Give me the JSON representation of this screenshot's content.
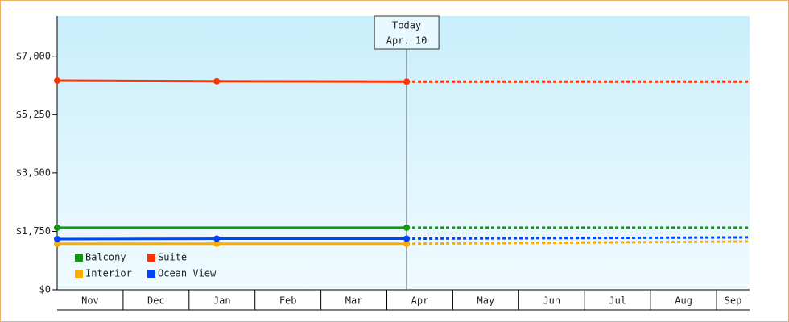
{
  "chart_data": {
    "type": "line",
    "categories": [
      "Nov",
      "Dec",
      "Jan",
      "Feb",
      "Mar",
      "Apr",
      "May",
      "Jun",
      "Jul",
      "Aug",
      "Sep"
    ],
    "xlim": [
      0,
      10.5
    ],
    "ylim": [
      0,
      8200
    ],
    "yticks": [
      {
        "value": 0,
        "label": "$0"
      },
      {
        "value": 1750,
        "label": "$1,750"
      },
      {
        "value": 3500,
        "label": "$3,500"
      },
      {
        "value": 5250,
        "label": "$5,250"
      },
      {
        "value": 7000,
        "label": "$7,000"
      }
    ],
    "annotation": {
      "x": 5.3,
      "lines": [
        "Today",
        "Apr. 10"
      ]
    },
    "legend": "bottom-left",
    "series": [
      {
        "name": "Balcony",
        "color": "#119911",
        "x": [
          0,
          5.3,
          10.5
        ],
        "values": [
          1860,
          1860,
          1860
        ]
      },
      {
        "name": "Suite",
        "color": "#ff3300",
        "x": [
          0,
          2.42,
          5.3,
          10.5
        ],
        "values": [
          6270,
          6250,
          6240,
          6240
        ]
      },
      {
        "name": "Interior",
        "color": "#ffaa00",
        "x": [
          0,
          2.42,
          5.3,
          10.5
        ],
        "values": [
          1380,
          1380,
          1380,
          1450
        ]
      },
      {
        "name": "Ocean View",
        "color": "#0044ff",
        "x": [
          0,
          2.42,
          5.3,
          10.5
        ],
        "values": [
          1520,
          1530,
          1530,
          1570
        ]
      }
    ]
  }
}
